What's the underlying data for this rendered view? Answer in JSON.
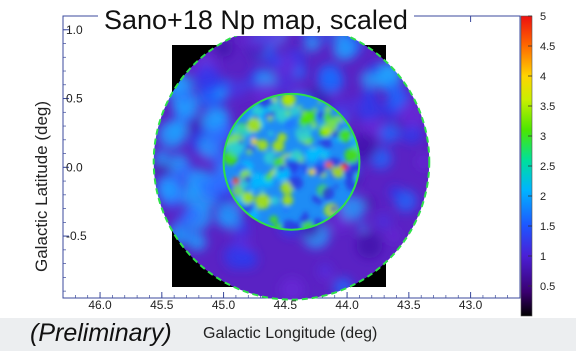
{
  "chart_data": {
    "type": "heatmap",
    "title": "Sano+18 Np map, scaled",
    "annotation": "(Preliminary)",
    "xlabel": "Galactic Longitude (deg)",
    "ylabel": "Galactic Latitude (deg)",
    "xlim": [
      46.3,
      42.6
    ],
    "ylim": [
      -0.95,
      1.1
    ],
    "x_ticks": [
      "46.0",
      "45.5",
      "45.0",
      "44.5",
      "44.0",
      "43.5",
      "43.0"
    ],
    "y_ticks": [
      "1.0",
      "0.5",
      "0.0",
      "-0.5"
    ],
    "colorbar": {
      "range": [
        0,
        5
      ],
      "ticks": [
        "0.5",
        "1",
        "1.5",
        "2",
        "2.5",
        "3",
        "3.5",
        "4",
        "4.5",
        "5"
      ]
    },
    "regions": [
      {
        "shape": "circle",
        "center_l": 44.45,
        "center_b": 0.04,
        "radius_deg": 1.15,
        "line": "dashed",
        "color": "#2ee04a"
      },
      {
        "shape": "circle",
        "center_l": 44.45,
        "center_b": 0.04,
        "radius_deg": 0.55,
        "line": "solid",
        "color": "#2ee04a"
      }
    ],
    "colors": {
      "map_background": "#000000",
      "region_outline": "#2ee04a"
    }
  }
}
